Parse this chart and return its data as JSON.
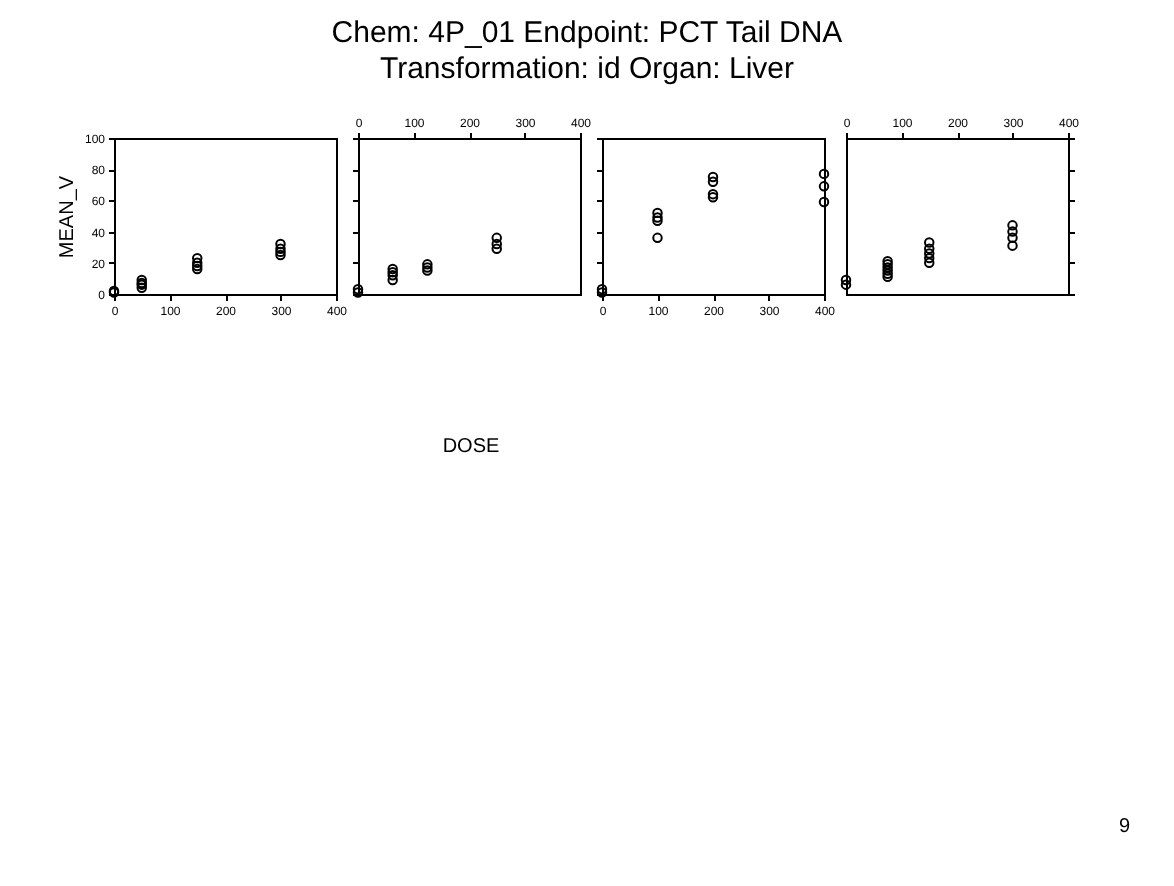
{
  "chart_data": [
    {
      "type": "scatter",
      "title": "Chem: 4P_01  Endpoint: PCT Tail DNA\nTransformation: id  Organ: Liver",
      "ylabel": "MEAN_V",
      "annotations": [
        "9"
      ],
      "marker": "circle",
      "xlim": [
        0,
        400
      ],
      "xticks": [
        0,
        100,
        200,
        300,
        400
      ],
      "ylim": [
        0,
        100
      ],
      "yticks": [
        0,
        20,
        40,
        60,
        80,
        100
      ],
      "series": [
        {
          "color": "#000000",
          "x": [
            0,
            0,
            50,
            50,
            50,
            50,
            150,
            150,
            150,
            150,
            300,
            300,
            300,
            300
          ],
          "values": [
            1,
            2,
            4,
            6,
            7,
            9,
            16,
            18,
            20,
            23,
            25,
            27,
            29,
            32
          ]
        }
      ]
    },
    {
      "type": "scatter",
      "xlabel": "DOSE",
      "marker": "circle",
      "xlim": [
        0,
        400
      ],
      "xticks": [
        0,
        100,
        200,
        300,
        400
      ],
      "ylim": [
        0,
        100
      ],
      "yticks": [
        0,
        20,
        40,
        60,
        80,
        100
      ],
      "tick_labels": "x",
      "series": [
        {
          "color": "#000000",
          "x": [
            0,
            0,
            62.5,
            62.5,
            62.5,
            62.5,
            125,
            125,
            125,
            250,
            250,
            250
          ],
          "values": [
            1,
            3,
            9,
            12,
            14,
            16,
            15,
            17,
            19,
            29,
            32,
            36
          ]
        }
      ]
    },
    {
      "type": "scatter",
      "marker": "circle",
      "xlim": [
        0,
        400
      ],
      "xticks": [
        0,
        100,
        200,
        300,
        400
      ],
      "ylim": [
        0,
        100
      ],
      "yticks": [
        0,
        20,
        40,
        60,
        80,
        100
      ],
      "tick_labels": "x",
      "series": [
        {
          "color": "#000000",
          "x": [
            0,
            0,
            100,
            100,
            100,
            100,
            200,
            200,
            200,
            200,
            400,
            400,
            400
          ],
          "values": [
            1,
            3,
            36,
            47,
            49,
            52,
            62,
            64,
            72,
            75,
            59,
            69,
            77
          ]
        }
      ]
    },
    {
      "type": "scatter",
      "marker": "circle",
      "xlim": [
        0,
        400
      ],
      "xticks": [
        0,
        100,
        200,
        300,
        400
      ],
      "ylim": [
        0,
        100
      ],
      "yticks": [
        0,
        20,
        40,
        60,
        80,
        100
      ],
      "tick_labels": "x",
      "series": [
        {
          "color": "#000000",
          "x": [
            0,
            0,
            75,
            75,
            75,
            75,
            75,
            75,
            150,
            150,
            150,
            150,
            150,
            300,
            300,
            300,
            300
          ],
          "values": [
            6,
            9,
            11,
            13,
            15,
            17,
            19,
            21,
            20,
            23,
            26,
            29,
            33,
            31,
            36,
            40,
            44
          ]
        }
      ]
    }
  ]
}
